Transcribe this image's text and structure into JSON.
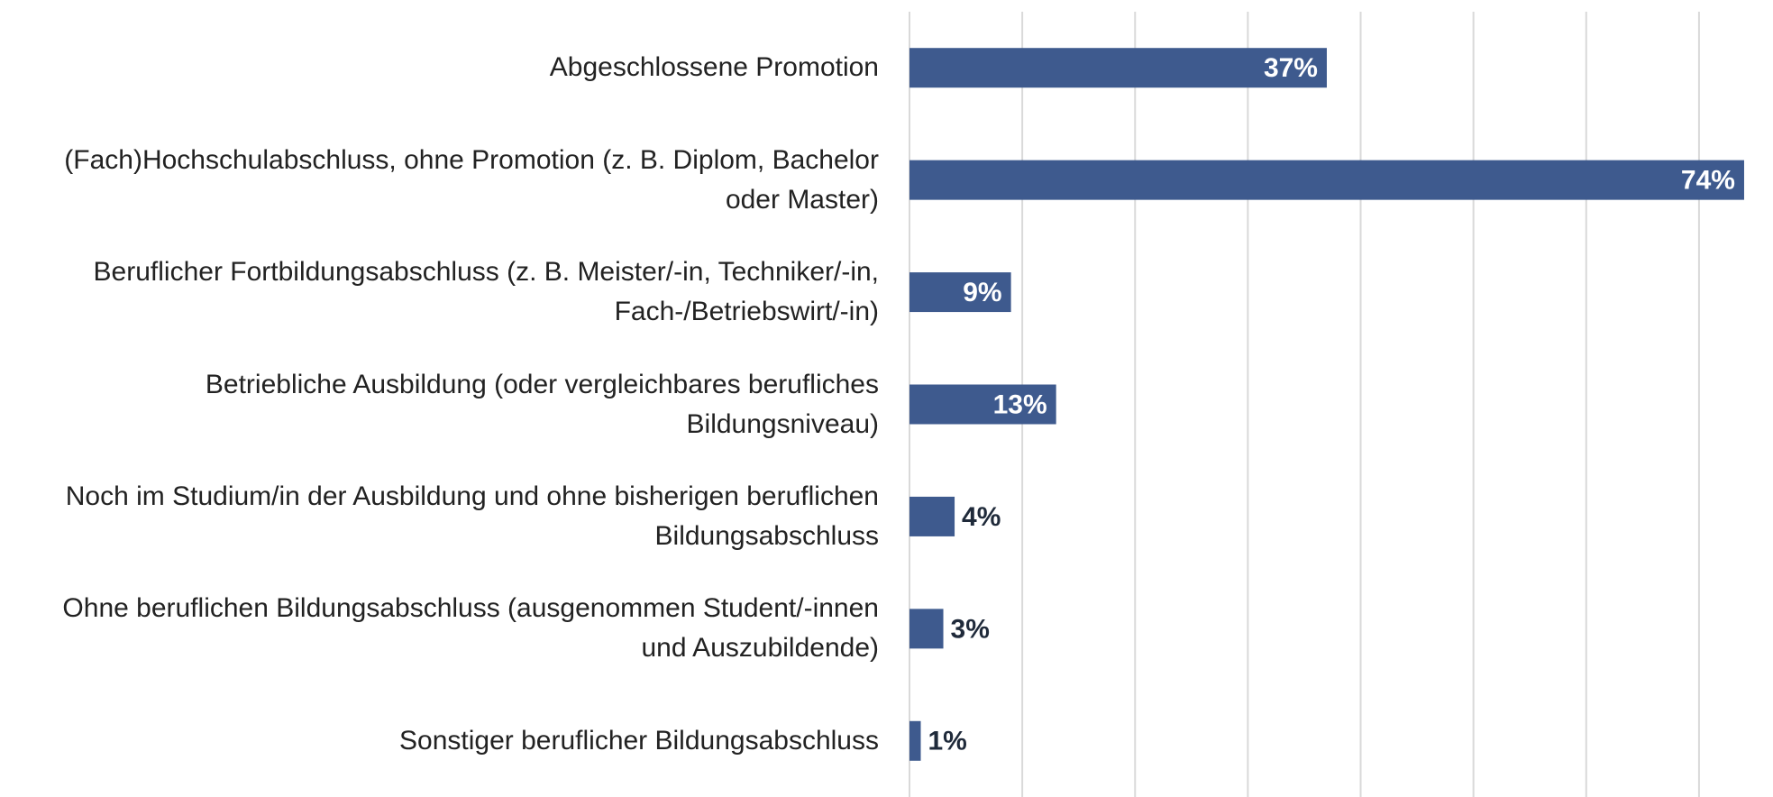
{
  "chart_data": {
    "type": "barh",
    "categories": [
      "Abgeschlossene Promotion",
      "(Fach)Hochschulabschluss, ohne Promotion (z. B. Diplom, Bachelor oder Master)",
      "Beruflicher Fortbildungsabschluss (z. B. Meister/-in, Techniker/-in, Fach-/Betriebswirt/-in)",
      "Betriebliche Ausbildung (oder vergleichbares berufliches Bildungsniveau)",
      "Noch im Studium/in der Ausbildung und ohne bisherigen beruflichen Bildungsabschluss",
      "Ohne beruflichen Bildungsabschluss (ausgenommen Student/-innen und Auszubildende)",
      "Sonstiger beruflicher Bildungsabschluss"
    ],
    "values": [
      37,
      74,
      9,
      13,
      4,
      3,
      1
    ],
    "value_labels": [
      "37%",
      "74%",
      "9%",
      "13%",
      "4%",
      "3%",
      "1%"
    ],
    "color": "#3e5a8e",
    "xlim": [
      0,
      76
    ],
    "xticks": [
      0,
      10,
      20,
      30,
      40,
      50,
      60,
      70
    ],
    "grid": true
  }
}
